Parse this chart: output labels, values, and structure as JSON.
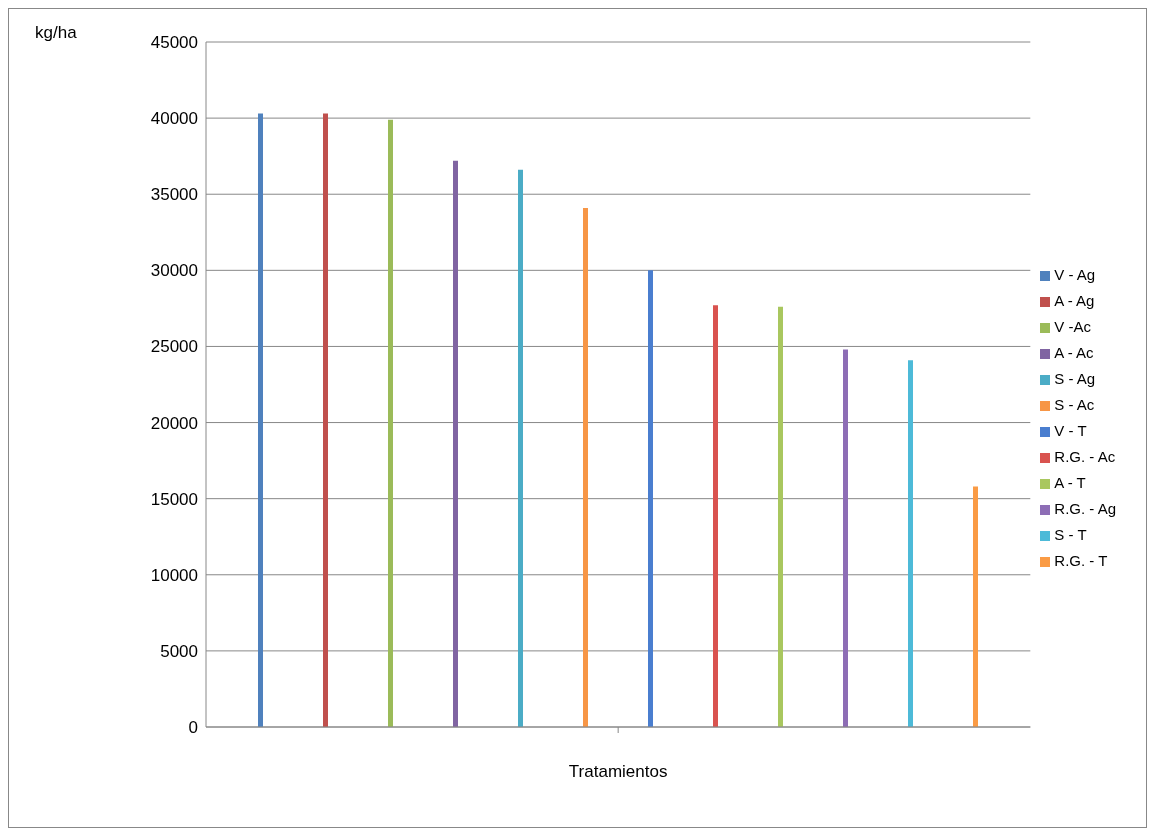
{
  "chart_data": {
    "type": "bar",
    "ylabel": "kg/ha",
    "xlabel": "Tratamientos",
    "categories": [
      null
    ],
    "series": [
      {
        "name": "V - Ag",
        "color": "#4f81bd",
        "values": [
          40300
        ]
      },
      {
        "name": "A - Ag",
        "color": "#c0504d",
        "values": [
          40300
        ]
      },
      {
        "name": "V -Ac",
        "color": "#9bbb59",
        "values": [
          39900
        ]
      },
      {
        "name": "A - Ac",
        "color": "#8064a2",
        "values": [
          37200
        ]
      },
      {
        "name": "S - Ag",
        "color": "#4bacc6",
        "values": [
          36600
        ]
      },
      {
        "name": "S - Ac",
        "color": "#f79646",
        "values": [
          34100
        ]
      },
      {
        "name": "V - T",
        "color": "#4a7ecf",
        "values": [
          30000
        ]
      },
      {
        "name": "R.G. - Ac",
        "color": "#d9534f",
        "values": [
          27700
        ]
      },
      {
        "name": "A - T",
        "color": "#a9c75f",
        "values": [
          27600
        ]
      },
      {
        "name": "R.G. - Ag",
        "color": "#8d6db5",
        "values": [
          24800
        ]
      },
      {
        "name": "S - T",
        "color": "#4dbad8",
        "values": [
          24100
        ]
      },
      {
        "name": "R.G. - T",
        "color": "#fa9b45",
        "values": [
          15800
        ]
      }
    ],
    "ylim": [
      0,
      45000
    ],
    "yticks": [
      0,
      5000,
      10000,
      15000,
      20000,
      25000,
      30000,
      35000,
      40000,
      45000
    ],
    "grid": "y",
    "legend": "right"
  }
}
